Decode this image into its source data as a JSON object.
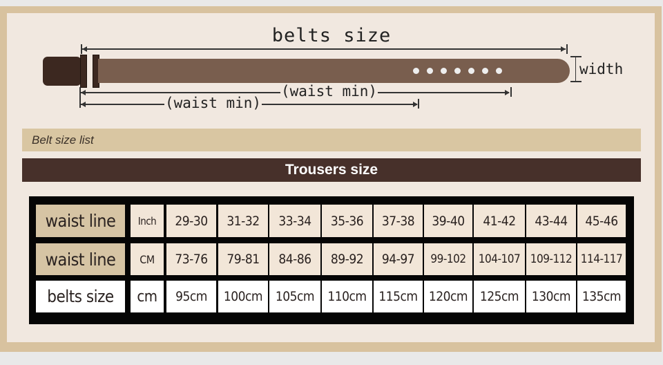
{
  "diagram": {
    "title": "belts size",
    "width_label": "width",
    "waist_label_upper": "(waist min)",
    "waist_label_lower": "(waist min)",
    "colors": {
      "strap": "#795e4e",
      "buckle": "#3c2820",
      "frame": "#d8c29f"
    }
  },
  "list_header": "Belt size list",
  "section_header": "Trousers size",
  "table": {
    "rows": [
      {
        "label": "waist line",
        "unit": "Inch",
        "values": [
          "29-30",
          "31-32",
          "33-34",
          "35-36",
          "37-38",
          "39-40",
          "41-42",
          "43-44",
          "45-46"
        ]
      },
      {
        "label": "waist line",
        "unit": "CM",
        "values": [
          "73-76",
          "79-81",
          "84-86",
          "89-92",
          "94-97",
          "99-102",
          "104-107",
          "109-112",
          "114-117"
        ]
      },
      {
        "label": "belts size",
        "unit": "cm",
        "values": [
          "95cm",
          "100cm",
          "105cm",
          "110cm",
          "115cm",
          "120cm",
          "125cm",
          "130cm",
          "135cm"
        ]
      }
    ]
  }
}
